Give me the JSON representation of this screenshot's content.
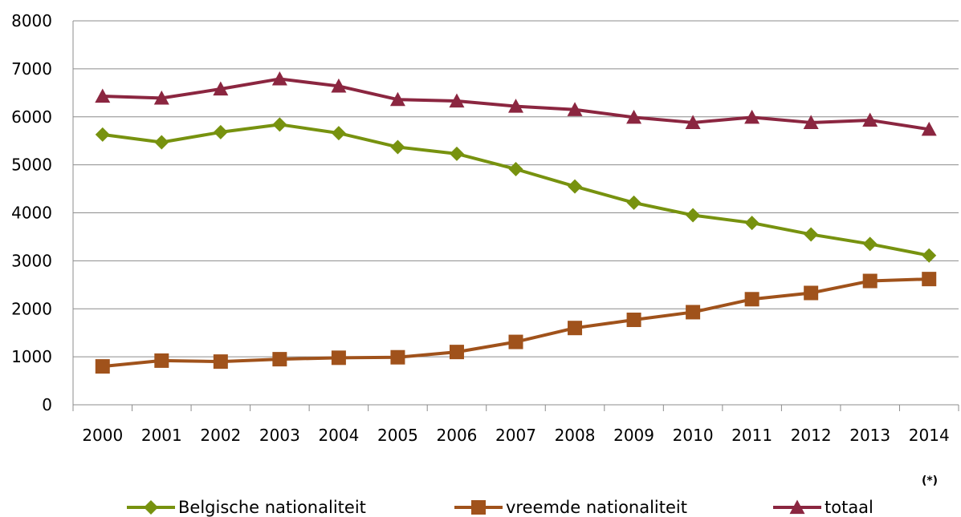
{
  "chart_data": {
    "type": "line",
    "categories": [
      "2000",
      "2001",
      "2002",
      "2003",
      "2004",
      "2005",
      "2006",
      "2007",
      "2008",
      "2009",
      "2010",
      "2011",
      "2012",
      "2013",
      "2014"
    ],
    "category_note": "(*)",
    "ylim": [
      0,
      8000
    ],
    "yticks": [
      "0",
      "1000",
      "2000",
      "3000",
      "4000",
      "5000",
      "6000",
      "7000",
      "8000"
    ],
    "grid": true,
    "legend_position": "bottom",
    "series": [
      {
        "name": "Belgische nationaliteit",
        "color": "#77920F",
        "marker": "diamond",
        "values": [
          5630,
          5470,
          5680,
          5840,
          5660,
          5370,
          5230,
          4910,
          4550,
          4210,
          3950,
          3790,
          3550,
          3350,
          3110
        ]
      },
      {
        "name": "vreemde nationaliteit",
        "color": "#A0521B",
        "marker": "square",
        "values": [
          800,
          920,
          900,
          950,
          980,
          990,
          1100,
          1310,
          1600,
          1770,
          1930,
          2200,
          2330,
          2580,
          2620
        ]
      },
      {
        "name": "totaal",
        "color": "#8B2640",
        "marker": "triangle",
        "values": [
          6430,
          6390,
          6580,
          6790,
          6640,
          6360,
          6330,
          6220,
          6150,
          5990,
          5880,
          5990,
          5880,
          5930,
          5740
        ]
      }
    ]
  }
}
